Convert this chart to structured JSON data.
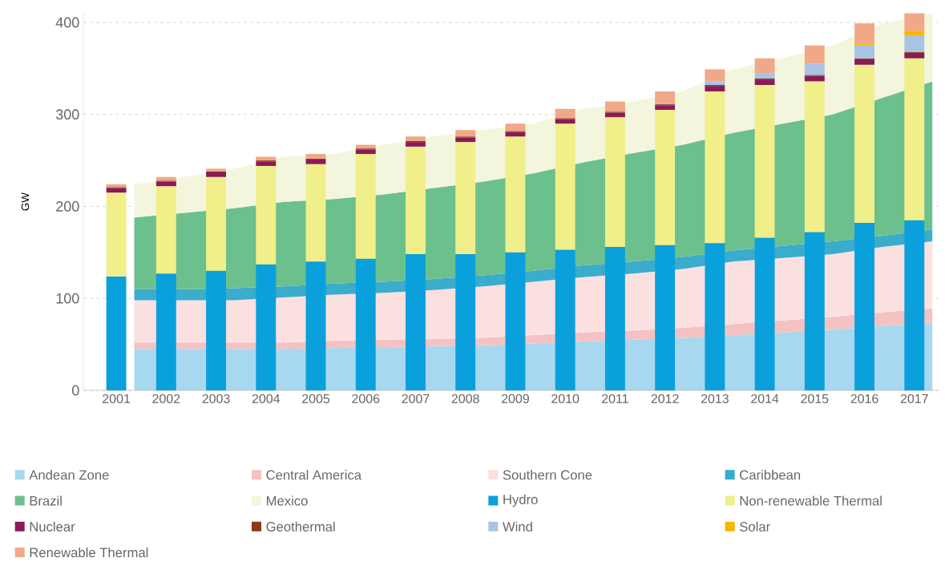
{
  "chart_data": [
    {
      "type": "area",
      "stacked": true,
      "ylabel": "GW",
      "categories": [
        "2001",
        "2002",
        "2003",
        "2004",
        "2005",
        "2006",
        "2007",
        "2008",
        "2009",
        "2010",
        "2011",
        "2012",
        "2013",
        "2014",
        "2015",
        "2016",
        "2017"
      ],
      "ylim": [
        0,
        410
      ],
      "yticks": [
        0,
        100,
        200,
        300,
        400
      ],
      "grid": "y",
      "legend": "bottom",
      "tick_labels": "y",
      "series": [
        {
          "name": "Andean Zone",
          "type": "area",
          "color": "#a8d8f0",
          "values": [
            45,
            45,
            45,
            45,
            46,
            47,
            48,
            49,
            51,
            53,
            55,
            57,
            60,
            63,
            66,
            70,
            73
          ]
        },
        {
          "name": "Central America",
          "type": "area",
          "color": "#f4c2c2",
          "values": [
            7,
            7,
            7,
            7,
            8,
            8,
            8,
            8,
            9,
            10,
            10,
            11,
            12,
            13,
            14,
            15,
            16
          ]
        },
        {
          "name": "Southern Cone",
          "type": "area",
          "color": "#fbe0e0",
          "values": [
            46,
            46,
            46,
            49,
            50,
            51,
            53,
            56,
            58,
            60,
            62,
            64,
            68,
            68,
            68,
            71,
            73
          ]
        },
        {
          "name": "Caribbean",
          "type": "area",
          "color": "#3aaccc",
          "values": [
            12,
            12,
            13,
            12,
            12,
            12,
            12,
            12,
            12,
            13,
            13,
            13,
            12,
            13,
            14,
            12,
            13
          ]
        },
        {
          "name": "Brazil",
          "type": "area",
          "color": "#6cc08e",
          "values": [
            78,
            83,
            87,
            92,
            92,
            95,
            99,
            102,
            106,
            112,
            118,
            122,
            128,
            133,
            138,
            150,
            161
          ]
        },
        {
          "name": "Mexico",
          "type": "area",
          "color": "#f3f6dc",
          "values": [
            36,
            39,
            43,
            49,
            49,
            54,
            56,
            56,
            54,
            58,
            56,
            58,
            69,
            71,
            75,
            81,
            74
          ]
        }
      ]
    },
    {
      "type": "bar",
      "stacked": true,
      "tick_labels": "x",
      "categories": [
        "2001",
        "2002",
        "2003",
        "2004",
        "2005",
        "2006",
        "2007",
        "2008",
        "2009",
        "2010",
        "2011",
        "2012",
        "2013",
        "2014",
        "2015",
        "2016",
        "2017"
      ],
      "ylim": [
        0,
        410
      ],
      "legend": "bottom",
      "series": [
        {
          "name": "Hydro",
          "type": "bar",
          "color": "#0aa0dc",
          "values": [
            124,
            127,
            130,
            137,
            140,
            143,
            148,
            148,
            150,
            153,
            156,
            158,
            160,
            166,
            172,
            182,
            185
          ]
        },
        {
          "name": "Non-renewable Thermal",
          "type": "bar",
          "color": "#f0ef8a",
          "values": [
            91,
            95,
            102,
            107,
            106,
            114,
            117,
            122,
            126,
            137,
            141,
            147,
            165,
            166,
            164,
            172,
            176
          ]
        },
        {
          "name": "Nuclear",
          "type": "bar",
          "color": "#8b1a5a",
          "values": [
            5,
            5,
            5,
            5,
            5,
            5,
            5,
            5,
            5,
            5,
            5,
            5,
            6,
            6,
            6,
            6,
            6
          ]
        },
        {
          "name": "Geothermal",
          "type": "bar",
          "color": "#8b3a1a",
          "values": [
            1,
            1,
            1,
            1,
            1,
            1,
            1,
            1,
            1,
            1,
            1,
            1,
            1,
            1,
            1,
            1,
            1
          ]
        },
        {
          "name": "Wind",
          "type": "bar",
          "color": "#a8c4e4",
          "values": [
            0,
            0,
            0,
            0,
            0,
            0,
            0,
            0,
            0,
            0,
            0,
            1,
            4,
            6,
            12,
            14,
            18
          ]
        },
        {
          "name": "Solar",
          "type": "bar",
          "color": "#f5b800",
          "values": [
            0,
            0,
            0,
            0,
            0,
            0,
            0,
            0,
            0,
            0,
            0,
            0,
            0,
            0,
            0,
            2,
            5
          ]
        },
        {
          "name": "Renewable Thermal",
          "type": "bar",
          "color": "#f0a888",
          "values": [
            3,
            4,
            3,
            4,
            5,
            4,
            5,
            7,
            8,
            10,
            11,
            13,
            13,
            16,
            20,
            22,
            19
          ]
        }
      ]
    }
  ]
}
